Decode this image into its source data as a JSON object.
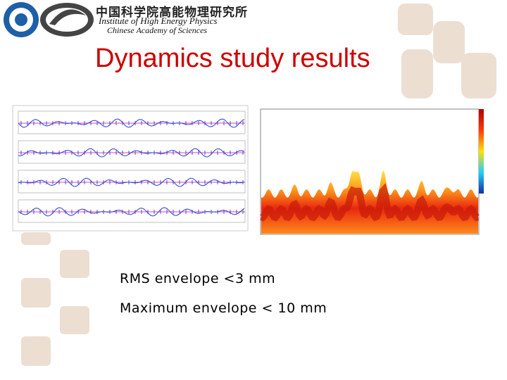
{
  "header": {
    "name_cn": "中国科学院高能物理研究所",
    "name_en": "Institute of High Energy Physics",
    "org_en": "Chinese Academy of Sciences"
  },
  "title": "Dynamics study results",
  "bullets": [
    "RMS envelope <3 mm",
    "Maximum envelope < 10 mm"
  ]
}
